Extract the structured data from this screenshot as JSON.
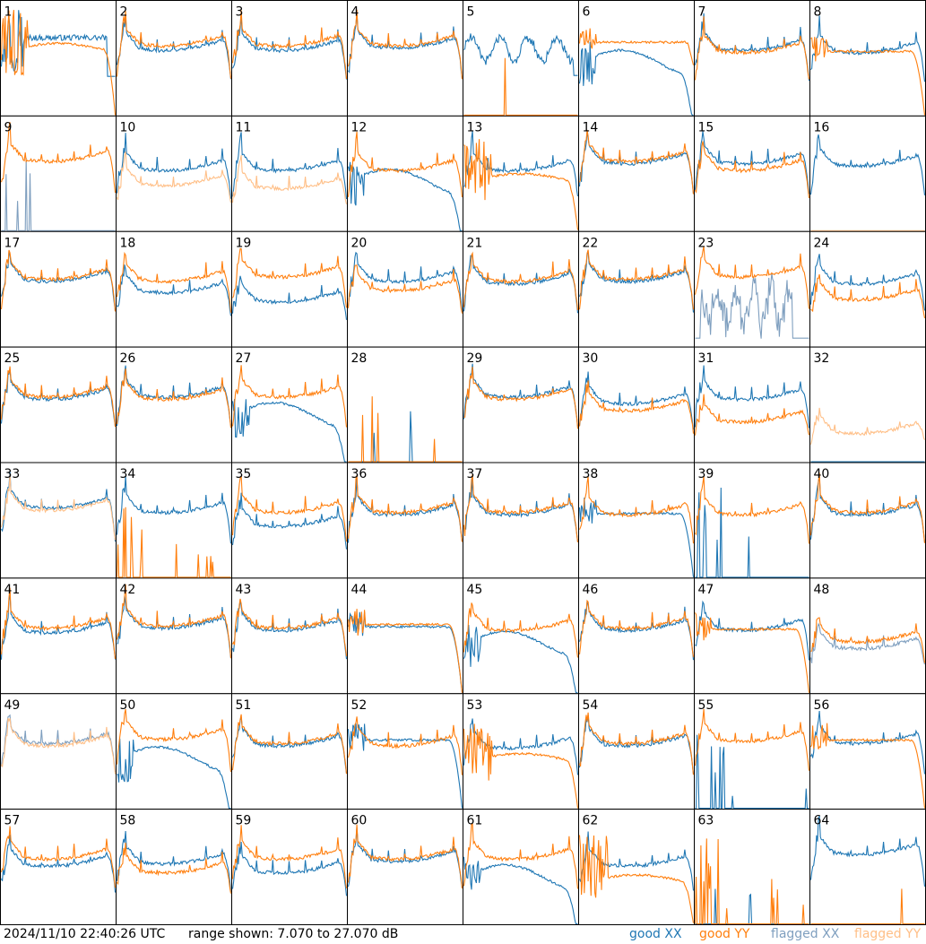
{
  "footer": {
    "timestamp": "2024/11/10 22:40:26 UTC",
    "range_text": "range shown: 7.070 to 27.070 dB"
  },
  "legend": [
    {
      "label": "good XX",
      "color": "#1f77b4"
    },
    {
      "label": "good YY",
      "color": "#ff7f0e"
    },
    {
      "label": "flagged XX",
      "color": "#7f9fbf"
    },
    {
      "label": "flagged YY",
      "color": "#ffbf87"
    }
  ],
  "chart_data": {
    "type": "line",
    "ylim": [
      7.07,
      27.07
    ],
    "panels": [
      {
        "label": "1",
        "xx": {
          "status": "good",
          "shape": "spiky_early",
          "level": 0.68
        },
        "yy": {
          "status": "good",
          "shape": "spiky_early_dip",
          "level": 0.55
        }
      },
      {
        "label": "2",
        "xx": {
          "status": "good",
          "shape": "normal",
          "level": 0.62
        },
        "yy": {
          "status": "good",
          "shape": "normal",
          "level": 0.66
        }
      },
      {
        "label": "3",
        "xx": {
          "status": "good",
          "shape": "normal",
          "level": 0.62
        },
        "yy": {
          "status": "good",
          "shape": "normal",
          "level": 0.66
        }
      },
      {
        "label": "4",
        "xx": {
          "status": "good",
          "shape": "normal",
          "level": 0.64
        },
        "yy": {
          "status": "good",
          "shape": "normal",
          "level": 0.66
        }
      },
      {
        "label": "5",
        "xx": {
          "status": "good",
          "shape": "wobbly",
          "level": 0.58
        },
        "yy": {
          "status": "good",
          "shape": "flat_zero",
          "level": 0.0
        }
      },
      {
        "label": "6",
        "xx": {
          "status": "good",
          "shape": "sag_dropoff",
          "level": 0.45
        },
        "yy": {
          "status": "good",
          "shape": "flat_high",
          "level": 0.64
        }
      },
      {
        "label": "7",
        "xx": {
          "status": "good",
          "shape": "normal",
          "level": 0.62
        },
        "yy": {
          "status": "good",
          "shape": "normal",
          "level": 0.6
        }
      },
      {
        "label": "8",
        "xx": {
          "status": "good",
          "shape": "normal",
          "level": 0.6
        },
        "yy": {
          "status": "good",
          "shape": "flat_dropoff",
          "level": 0.56
        }
      },
      {
        "label": "9",
        "xx": {
          "status": "flagged",
          "shape": "sparse_spikes",
          "level": 0.15
        },
        "yy": {
          "status": "good",
          "shape": "normal",
          "level": 0.66
        }
      },
      {
        "label": "10",
        "xx": {
          "status": "good",
          "shape": "normal",
          "level": 0.58
        },
        "yy": {
          "status": "flagged",
          "shape": "normal_low",
          "level": 0.45
        }
      },
      {
        "label": "11",
        "xx": {
          "status": "good",
          "shape": "normal",
          "level": 0.58
        },
        "yy": {
          "status": "flagged",
          "shape": "normal_low",
          "level": 0.42
        }
      },
      {
        "label": "12",
        "xx": {
          "status": "good",
          "shape": "sag_dropoff",
          "level": 0.42
        },
        "yy": {
          "status": "good",
          "shape": "normal",
          "level": 0.58
        }
      },
      {
        "label": "13",
        "xx": {
          "status": "good",
          "shape": "normal",
          "level": 0.58
        },
        "yy": {
          "status": "good",
          "shape": "spiky_early_dip",
          "level": 0.42
        }
      },
      {
        "label": "14",
        "xx": {
          "status": "good",
          "shape": "normal",
          "level": 0.64
        },
        "yy": {
          "status": "good",
          "shape": "normal",
          "level": 0.66
        }
      },
      {
        "label": "15",
        "xx": {
          "status": "good",
          "shape": "normal",
          "level": 0.64
        },
        "yy": {
          "status": "good",
          "shape": "normal",
          "level": 0.58
        }
      },
      {
        "label": "16",
        "xx": {
          "status": "good",
          "shape": "normal",
          "level": 0.62
        },
        "yy": {
          "status": "flagged",
          "shape": "flat_zero",
          "level": 0.0
        }
      },
      {
        "label": "17",
        "xx": {
          "status": "good",
          "shape": "normal",
          "level": 0.62
        },
        "yy": {
          "status": "good",
          "shape": "normal",
          "level": 0.64
        }
      },
      {
        "label": "18",
        "xx": {
          "status": "good",
          "shape": "normal",
          "level": 0.52
        },
        "yy": {
          "status": "good",
          "shape": "normal",
          "level": 0.62
        }
      },
      {
        "label": "19",
        "xx": {
          "status": "good",
          "shape": "normal",
          "level": 0.44
        },
        "yy": {
          "status": "good",
          "shape": "normal",
          "level": 0.66
        }
      },
      {
        "label": "20",
        "xx": {
          "status": "good",
          "shape": "normal",
          "level": 0.62
        },
        "yy": {
          "status": "good",
          "shape": "normal",
          "level": 0.54
        }
      },
      {
        "label": "21",
        "xx": {
          "status": "good",
          "shape": "normal",
          "level": 0.6
        },
        "yy": {
          "status": "good",
          "shape": "normal",
          "level": 0.62
        }
      },
      {
        "label": "22",
        "xx": {
          "status": "good",
          "shape": "normal",
          "level": 0.62
        },
        "yy": {
          "status": "good",
          "shape": "normal",
          "level": 0.64
        }
      },
      {
        "label": "23",
        "xx": {
          "status": "flagged",
          "shape": "noisy_mid",
          "level": 0.35
        },
        "yy": {
          "status": "good",
          "shape": "normal",
          "level": 0.66
        }
      },
      {
        "label": "24",
        "xx": {
          "status": "good",
          "shape": "normal",
          "level": 0.6
        },
        "yy": {
          "status": "good",
          "shape": "normal",
          "level": 0.46
        }
      },
      {
        "label": "25",
        "xx": {
          "status": "good",
          "shape": "normal",
          "level": 0.6
        },
        "yy": {
          "status": "good",
          "shape": "normal",
          "level": 0.62
        }
      },
      {
        "label": "26",
        "xx": {
          "status": "good",
          "shape": "normal",
          "level": 0.62
        },
        "yy": {
          "status": "good",
          "shape": "normal",
          "level": 0.6
        }
      },
      {
        "label": "27",
        "xx": {
          "status": "good",
          "shape": "sag_dropoff",
          "level": 0.4
        },
        "yy": {
          "status": "good",
          "shape": "normal",
          "level": 0.62
        }
      },
      {
        "label": "28",
        "xx": {
          "status": "good",
          "shape": "flat_zero",
          "level": 0.0
        },
        "yy": {
          "status": "good",
          "shape": "sparse_spikes",
          "level": 0.2
        }
      },
      {
        "label": "29",
        "xx": {
          "status": "good",
          "shape": "normal",
          "level": 0.62
        },
        "yy": {
          "status": "good",
          "shape": "normal",
          "level": 0.6
        }
      },
      {
        "label": "30",
        "xx": {
          "status": "good",
          "shape": "normal",
          "level": 0.56
        },
        "yy": {
          "status": "good",
          "shape": "normal",
          "level": 0.5
        }
      },
      {
        "label": "31",
        "xx": {
          "status": "good",
          "shape": "normal",
          "level": 0.6
        },
        "yy": {
          "status": "good",
          "shape": "normal",
          "level": 0.4
        }
      },
      {
        "label": "32",
        "xx": {
          "status": "good",
          "shape": "flat_zero",
          "level": 0.0
        },
        "yy": {
          "status": "flagged",
          "shape": "normal_low",
          "level": 0.3
        }
      },
      {
        "label": "33",
        "xx": {
          "status": "good",
          "shape": "normal",
          "level": 0.66
        },
        "yy": {
          "status": "flagged",
          "shape": "normal",
          "level": 0.64
        }
      },
      {
        "label": "34",
        "xx": {
          "status": "good",
          "shape": "normal",
          "level": 0.62
        },
        "yy": {
          "status": "good",
          "shape": "sparse_spikes",
          "level": 0.15
        }
      },
      {
        "label": "35",
        "xx": {
          "status": "good",
          "shape": "normal",
          "level": 0.5
        },
        "yy": {
          "status": "good",
          "shape": "normal",
          "level": 0.62
        }
      },
      {
        "label": "36",
        "xx": {
          "status": "good",
          "shape": "normal",
          "level": 0.6
        },
        "yy": {
          "status": "good",
          "shape": "normal",
          "level": 0.62
        }
      },
      {
        "label": "37",
        "xx": {
          "status": "good",
          "shape": "normal",
          "level": 0.6
        },
        "yy": {
          "status": "good",
          "shape": "normal",
          "level": 0.62
        }
      },
      {
        "label": "38",
        "xx": {
          "status": "good",
          "shape": "flat_dropoff",
          "level": 0.56
        },
        "yy": {
          "status": "good",
          "shape": "normal",
          "level": 0.6
        }
      },
      {
        "label": "39",
        "xx": {
          "status": "good",
          "shape": "sparse_spikes",
          "level": 0.2
        },
        "yy": {
          "status": "good",
          "shape": "normal",
          "level": 0.6
        }
      },
      {
        "label": "40",
        "xx": {
          "status": "good",
          "shape": "normal",
          "level": 0.6
        },
        "yy": {
          "status": "good",
          "shape": "normal",
          "level": 0.62
        }
      },
      {
        "label": "41",
        "xx": {
          "status": "good",
          "shape": "normal",
          "level": 0.58
        },
        "yy": {
          "status": "good",
          "shape": "normal",
          "level": 0.62
        }
      },
      {
        "label": "42",
        "xx": {
          "status": "good",
          "shape": "normal",
          "level": 0.62
        },
        "yy": {
          "status": "good",
          "shape": "normal",
          "level": 0.64
        }
      },
      {
        "label": "43",
        "xx": {
          "status": "good",
          "shape": "normal",
          "level": 0.6
        },
        "yy": {
          "status": "good",
          "shape": "normal",
          "level": 0.62
        }
      },
      {
        "label": "44",
        "xx": {
          "status": "good",
          "shape": "flat_dropoff",
          "level": 0.58
        },
        "yy": {
          "status": "good",
          "shape": "flat_dropoff",
          "level": 0.6
        }
      },
      {
        "label": "45",
        "xx": {
          "status": "good",
          "shape": "sag_dropoff",
          "level": 0.42
        },
        "yy": {
          "status": "good",
          "shape": "normal",
          "level": 0.6
        }
      },
      {
        "label": "46",
        "xx": {
          "status": "good",
          "shape": "normal",
          "level": 0.6
        },
        "yy": {
          "status": "good",
          "shape": "normal",
          "level": 0.62
        }
      },
      {
        "label": "47",
        "xx": {
          "status": "good",
          "shape": "normal",
          "level": 0.6
        },
        "yy": {
          "status": "good",
          "shape": "flat_dropoff",
          "level": 0.56
        }
      },
      {
        "label": "48",
        "xx": {
          "status": "flagged",
          "shape": "normal",
          "level": 0.44
        },
        "yy": {
          "status": "good",
          "shape": "normal",
          "level": 0.5
        }
      },
      {
        "label": "49",
        "xx": {
          "status": "flagged",
          "shape": "normal",
          "level": 0.62
        },
        "yy": {
          "status": "flagged",
          "shape": "normal",
          "level": 0.6
        }
      },
      {
        "label": "50",
        "xx": {
          "status": "good",
          "shape": "sag_dropoff",
          "level": 0.42
        },
        "yy": {
          "status": "good",
          "shape": "normal",
          "level": 0.66
        }
      },
      {
        "label": "51",
        "xx": {
          "status": "good",
          "shape": "normal",
          "level": 0.6
        },
        "yy": {
          "status": "good",
          "shape": "normal",
          "level": 0.62
        }
      },
      {
        "label": "52",
        "xx": {
          "status": "good",
          "shape": "flat_dropoff",
          "level": 0.6
        },
        "yy": {
          "status": "good",
          "shape": "normal",
          "level": 0.6
        }
      },
      {
        "label": "53",
        "xx": {
          "status": "good",
          "shape": "normal",
          "level": 0.58
        },
        "yy": {
          "status": "good",
          "shape": "spiky_early_dip",
          "level": 0.4
        }
      },
      {
        "label": "54",
        "xx": {
          "status": "good",
          "shape": "normal",
          "level": 0.6
        },
        "yy": {
          "status": "good",
          "shape": "normal",
          "level": 0.62
        }
      },
      {
        "label": "55",
        "xx": {
          "status": "good",
          "shape": "sparse_spikes",
          "level": 0.25
        },
        "yy": {
          "status": "good",
          "shape": "normal",
          "level": 0.64
        }
      },
      {
        "label": "56",
        "xx": {
          "status": "good",
          "shape": "normal",
          "level": 0.62
        },
        "yy": {
          "status": "good",
          "shape": "flat_dropoff",
          "level": 0.6
        }
      },
      {
        "label": "57",
        "xx": {
          "status": "good",
          "shape": "normal",
          "level": 0.56
        },
        "yy": {
          "status": "good",
          "shape": "normal",
          "level": 0.62
        }
      },
      {
        "label": "58",
        "xx": {
          "status": "good",
          "shape": "normal",
          "level": 0.58
        },
        "yy": {
          "status": "good",
          "shape": "normal",
          "level": 0.5
        }
      },
      {
        "label": "59",
        "xx": {
          "status": "good",
          "shape": "normal",
          "level": 0.5
        },
        "yy": {
          "status": "good",
          "shape": "normal",
          "level": 0.62
        }
      },
      {
        "label": "60",
        "xx": {
          "status": "good",
          "shape": "normal",
          "level": 0.6
        },
        "yy": {
          "status": "good",
          "shape": "normal",
          "level": 0.62
        }
      },
      {
        "label": "61",
        "xx": {
          "status": "good",
          "shape": "sag_dropoff",
          "level": 0.4
        },
        "yy": {
          "status": "good",
          "shape": "normal",
          "level": 0.62
        }
      },
      {
        "label": "62",
        "xx": {
          "status": "good",
          "shape": "normal",
          "level": 0.56
        },
        "yy": {
          "status": "good",
          "shape": "spiky_early_dip",
          "level": 0.35
        }
      },
      {
        "label": "63",
        "xx": {
          "status": "good",
          "shape": "flat_zero",
          "level": 0.0
        },
        "yy": {
          "status": "good",
          "shape": "sparse_spikes",
          "level": 0.2
        }
      },
      {
        "label": "64",
        "xx": {
          "status": "good",
          "shape": "normal",
          "level": 0.66
        },
        "yy": {
          "status": "good",
          "shape": "flat_zero",
          "level": 0.0
        }
      }
    ]
  }
}
